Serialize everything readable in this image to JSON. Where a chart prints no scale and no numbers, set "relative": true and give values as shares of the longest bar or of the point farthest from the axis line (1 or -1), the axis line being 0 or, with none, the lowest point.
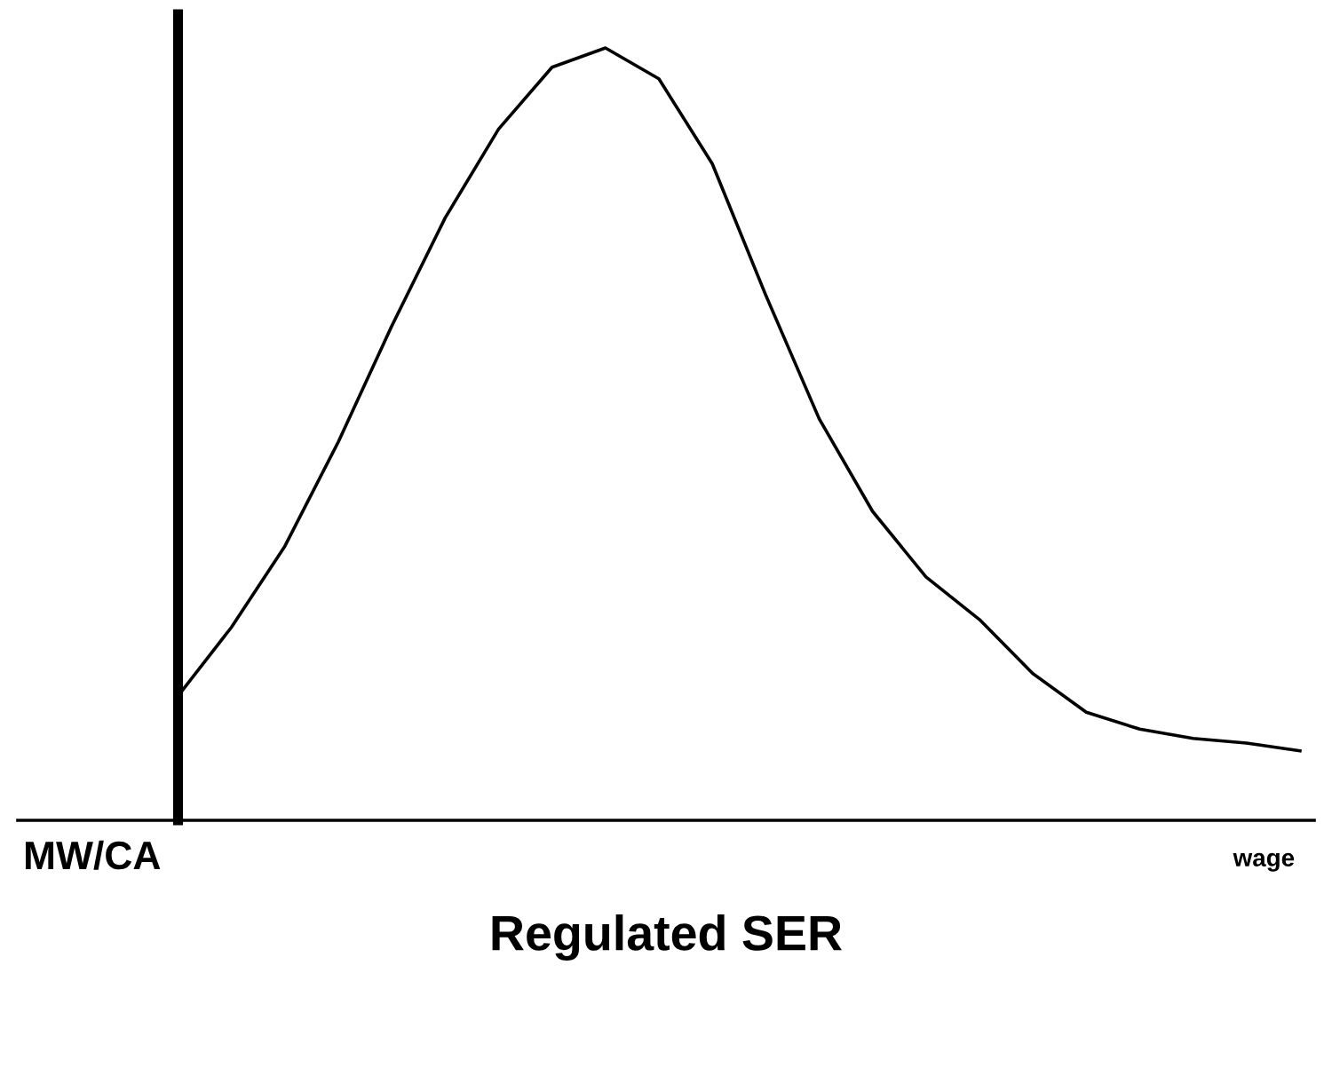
{
  "chart_data": {
    "type": "line",
    "relative": true,
    "title": "Regulated SER",
    "xlabel": "wage",
    "annotations": [
      "MW/CA"
    ],
    "categories": [
      null,
      null,
      null,
      null,
      null,
      null,
      null,
      null,
      null,
      null,
      null,
      null,
      null,
      null,
      null,
      null,
      null,
      null,
      null,
      null,
      null,
      null
    ],
    "series": [
      {
        "color": "#000000",
        "values": [
          0.161,
          0.25,
          0.355,
          0.49,
          0.64,
          0.78,
          0.895,
          0.975,
          1.0,
          0.96,
          0.85,
          0.68,
          0.52,
          0.4,
          0.315,
          0.26,
          0.19,
          0.14,
          0.118,
          0.106,
          0.1,
          0.09
        ]
      }
    ],
    "grid": false,
    "legend": false,
    "marker": "none",
    "line_style": "solid"
  }
}
